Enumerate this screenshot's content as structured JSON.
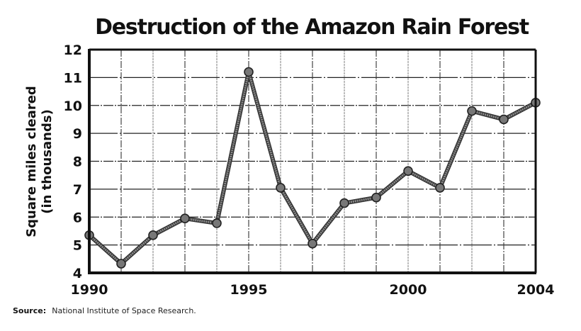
{
  "chart_data": {
    "type": "line",
    "title": "Destruction of the Amazon Rain Forest",
    "xlabel": "",
    "ylabel": "Square miles cleared",
    "ylabel_sub": "(in thousands)",
    "x": [
      1990,
      1991,
      1992,
      1993,
      1994,
      1995,
      1996,
      1997,
      1998,
      1999,
      2000,
      2001,
      2002,
      2003,
      2004
    ],
    "series": [
      {
        "name": "Square miles cleared",
        "values": [
          5.35,
          4.33,
          5.35,
          5.95,
          5.78,
          11.2,
          7.05,
          5.05,
          6.5,
          6.7,
          7.65,
          7.05,
          9.8,
          9.5,
          10.1
        ],
        "color": "#555555"
      }
    ],
    "xlim": [
      1990,
      2004
    ],
    "ylim": [
      4,
      12
    ],
    "x_tick_labels": [
      "1990",
      "1995",
      "2000",
      "2004"
    ],
    "x_tick_values": [
      1990,
      1995,
      2000,
      2004
    ],
    "y_tick_labels": [
      "4",
      "5",
      "6",
      "7",
      "8",
      "9",
      "10",
      "11",
      "12"
    ],
    "y_tick_values": [
      4,
      5,
      6,
      7,
      8,
      9,
      10,
      11,
      12
    ],
    "grid": true,
    "legend": "none"
  },
  "source": {
    "label": "Source:",
    "text": "National Institute of Space Research."
  }
}
